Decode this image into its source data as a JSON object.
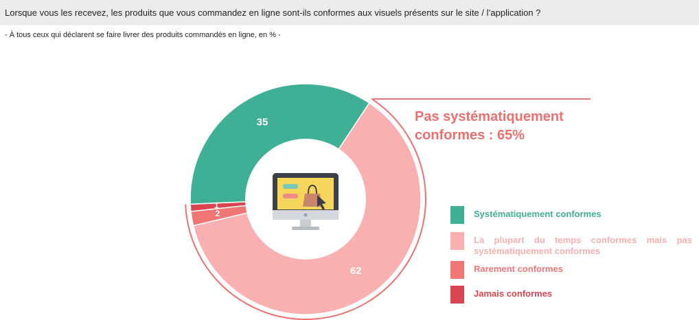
{
  "header": {
    "question": "Lorsque vous les recevez, les produits que vous commandez en ligne sont-ils conformes aux visuels présents sur le site / l’application ?",
    "subtitle": "- À tous ceux qui déclarent se faire livrer des produits commandés en ligne, en % -"
  },
  "callout": {
    "line1": "Pas systématiquement",
    "line2": "conformes : 65%"
  },
  "colors": {
    "teal": "#3fb095",
    "light_pink": "#f8b0b0",
    "coral": "#f07676",
    "red": "#d9444f",
    "callout_line": "#ee6f6f"
  },
  "legend": [
    {
      "label": "Systématiquement conformes",
      "color": "#3fb095"
    },
    {
      "label": "La plupart du temps conformes mais pas systématiquement conformes",
      "color": "#f8b0b0"
    },
    {
      "label": "Rarement conformes",
      "color": "#f07676"
    },
    {
      "label": "Jamais conformes",
      "color": "#d9444f"
    }
  ],
  "center_icon": "computer-shopping-bag-icon",
  "chart_data": {
    "type": "pie",
    "variant": "donut",
    "categories": [
      "Systématiquement conformes",
      "La plupart du temps conformes mais pas systématiquement conformes",
      "Rarement conformes",
      "Jamais conformes"
    ],
    "values": [
      35,
      62,
      2,
      1
    ],
    "value_labels": [
      "35",
      "62",
      "2",
      "1"
    ],
    "colors": [
      "#3fb095",
      "#f8b0b0",
      "#f07676",
      "#d9444f"
    ],
    "legend_position": "right",
    "unit": "%"
  }
}
